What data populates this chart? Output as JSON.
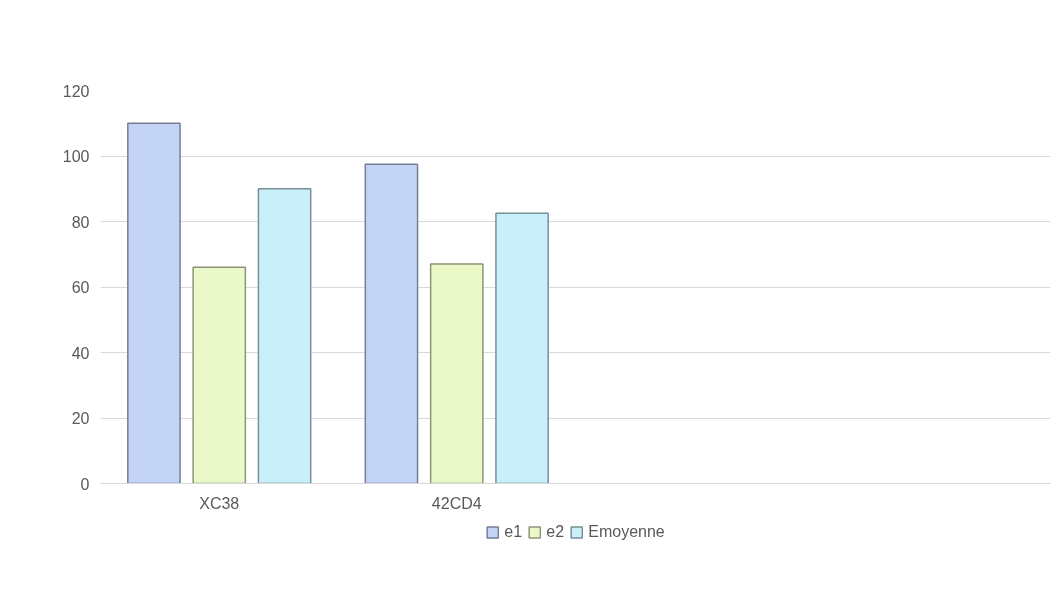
{
  "chart_data": {
    "type": "bar",
    "categories": [
      "XC38",
      "42CD4",
      null,
      null
    ],
    "series": [
      {
        "name": "e1",
        "color": "#c3d3f5",
        "values": [
          110,
          97.5,
          null,
          null
        ]
      },
      {
        "name": "e2",
        "color": "#ebf8c8",
        "values": [
          66,
          67,
          null,
          null
        ]
      },
      {
        "name": "Emoyenne",
        "color": "#c9f0fa",
        "values": [
          90,
          82.5,
          null,
          null
        ]
      }
    ],
    "ylim": [
      0,
      120
    ],
    "yticks": [
      0,
      20,
      40,
      60,
      80,
      100,
      120
    ],
    "grid": "y",
    "legend": "bottom"
  }
}
